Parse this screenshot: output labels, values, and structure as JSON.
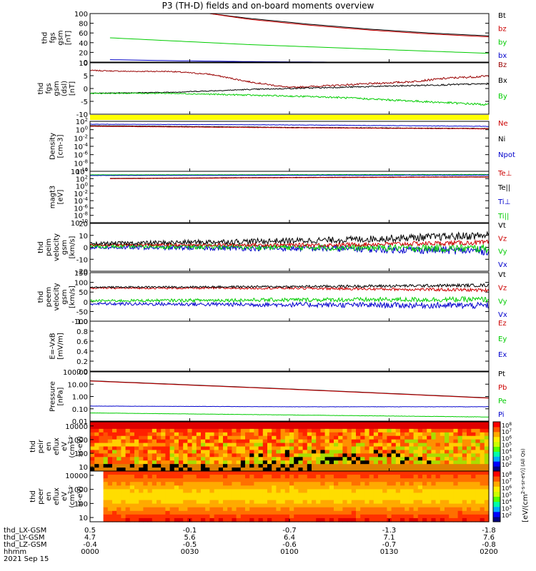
{
  "title": "P3 (TH-D) fields and on-board moments overview",
  "colors": {
    "black": "#000000",
    "red": "#cc0000",
    "darkred": "#990000",
    "green": "#00cc00",
    "blue": "#0000cc",
    "yellow": "#ffff00"
  },
  "footer": {
    "rows": [
      {
        "label": "thd_LX-GSM",
        "values": [
          "0.5",
          "-0.1",
          "-0.7",
          "-1.3",
          "-1.8"
        ]
      },
      {
        "label": "thd_LY-GSM",
        "values": [
          "4.7",
          "5.6",
          "6.4",
          "7.1",
          "7.6"
        ]
      },
      {
        "label": "thd_LZ-GSM",
        "values": [
          "-0.4",
          "-0.5",
          "-0.6",
          "-0.7",
          "-0.8"
        ]
      },
      {
        "label": "hhmm",
        "values": [
          "0000",
          "0030",
          "0100",
          "0130",
          "0200"
        ]
      }
    ],
    "date": "2021 Sep 15"
  },
  "colorbar": {
    "tick_labels": [
      "10^8",
      "10^7",
      "10^6",
      "10^5",
      "10^4",
      "10^3",
      "10^2"
    ],
    "title": "[eV/(cm^2-s-sr-eV)] (All Qs)"
  },
  "chart_data": [
    {
      "type": "line",
      "name": "fgs_gsm",
      "ylabel": [
        "thd",
        "fgs",
        "gsm",
        "[nT]"
      ],
      "ylim": [
        0,
        100
      ],
      "yticks": [
        "100",
        "80",
        "60",
        "40",
        "20",
        "0"
      ],
      "legend": [
        {
          "label": "Bt",
          "color": "#000000"
        },
        {
          "label": "bz",
          "color": "#cc0000"
        },
        {
          "label": "by",
          "color": "#00cc00"
        },
        {
          "label": "bx",
          "color": "#0000cc"
        }
      ],
      "series": [
        {
          "label": "Bt",
          "color": "#000000",
          "x": [
            0.3,
            0.4,
            0.55,
            0.7,
            0.85,
            1.0
          ],
          "y": [
            100,
            90,
            78,
            68,
            60,
            54
          ],
          "noise": 0
        },
        {
          "label": "bz",
          "color": "#cc0000",
          "x": [
            0.3,
            0.4,
            0.55,
            0.7,
            0.85,
            1.0
          ],
          "y": [
            100,
            88,
            76,
            66,
            58,
            52
          ],
          "noise": 0
        },
        {
          "label": "by",
          "color": "#00cc00",
          "x": [
            0.05,
            0.2,
            0.4,
            0.6,
            0.8,
            1.0
          ],
          "y": [
            50,
            44,
            36,
            30,
            24,
            18
          ],
          "noise": 0
        },
        {
          "label": "bx",
          "color": "#0000cc",
          "x": [
            0.05,
            0.2,
            0.4,
            0.6,
            0.8,
            1.0
          ],
          "y": [
            5,
            3,
            1,
            0,
            -1,
            -2
          ],
          "noise": 0
        }
      ]
    },
    {
      "type": "line",
      "name": "fgs_dsl",
      "ylabel": [
        "thd",
        "fgs",
        "gsm",
        "(dsl)",
        "[nT]"
      ],
      "ylim": [
        -15,
        12
      ],
      "yticks": [
        "10",
        "5",
        "0",
        "-5",
        "-10"
      ],
      "legend": [
        {
          "label": "Bz",
          "color": "#990000"
        },
        {
          "label": "Bx",
          "color": "#000000"
        },
        {
          "label": "By",
          "color": "#00cc00"
        }
      ],
      "series": [
        {
          "label": "Bz",
          "color": "#990000",
          "x": [
            0.0,
            0.1,
            0.2,
            0.3,
            0.4,
            0.5,
            0.6,
            0.7,
            0.8,
            0.9,
            1.0
          ],
          "y": [
            8,
            7.5,
            7.5,
            6,
            2,
            -1,
            0,
            1,
            2,
            4,
            5
          ],
          "noise": 0.4
        },
        {
          "label": "Bx",
          "color": "#000000",
          "x": [
            0.0,
            0.2,
            0.4,
            0.6,
            0.8,
            1.0
          ],
          "y": [
            -4,
            -3.5,
            -2,
            -1,
            0,
            1
          ],
          "noise": 0.3
        },
        {
          "label": "By",
          "color": "#00cc00",
          "x": [
            0.0,
            0.2,
            0.4,
            0.6,
            0.8,
            1.0
          ],
          "y": [
            -4,
            -4,
            -5,
            -6,
            -8,
            -10
          ],
          "noise": 0.4
        }
      ]
    },
    {
      "type": "line",
      "name": "density",
      "ylabel": [
        "Density",
        "[cm-3]"
      ],
      "ylim": [
        -11,
        3
      ],
      "ylog": true,
      "yticks": [
        "10^2",
        "10^0",
        "10^-2",
        "10^-4",
        "10^-6",
        "10^-8",
        "10^-10"
      ],
      "legend": [
        {
          "label": "Ne",
          "color": "#cc0000"
        },
        {
          "label": "Ni",
          "color": "#000000"
        },
        {
          "label": "Npot",
          "color": "#0000cc"
        }
      ],
      "series": [
        {
          "label": "Npot",
          "color": "#0000cc",
          "x": [
            0.0,
            0.5,
            1.0
          ],
          "y": [
            2.2,
            2.0,
            1.6
          ],
          "noise": 0.05
        },
        {
          "label": "Ni",
          "color": "#000000",
          "x": [
            0.0,
            0.5,
            1.0
          ],
          "y": [
            1.8,
            1.3,
            1.0
          ],
          "noise": 0.05
        },
        {
          "label": "Ne",
          "color": "#cc0000",
          "x": [
            0.0,
            0.5,
            1.0
          ],
          "y": [
            1.6,
            1.2,
            0.9
          ],
          "noise": 0.05
        }
      ]
    },
    {
      "type": "line",
      "name": "temperature",
      "ylabel": [
        "magt3",
        "[eV]"
      ],
      "ylim": [
        -11,
        5
      ],
      "ylog": true,
      "yticks": [
        "10^4",
        "10^2",
        "10^0",
        "10^-2",
        "10^-4",
        "10^-6",
        "10^-8",
        "10^-10"
      ],
      "legend": [
        {
          "label": "Te⊥",
          "color": "#cc0000"
        },
        {
          "label": "Te||",
          "color": "#000000"
        },
        {
          "label": "Ti⊥",
          "color": "#0000cc"
        },
        {
          "label": "Ti||",
          "color": "#00cc00"
        }
      ],
      "series": [
        {
          "label": "Ti||",
          "color": "#00cc00",
          "x": [
            0.0,
            1.0
          ],
          "y": [
            3.9,
            4.0
          ],
          "noise": 0.05
        },
        {
          "label": "Ti⊥",
          "color": "#0000cc",
          "x": [
            0.0,
            1.0
          ],
          "y": [
            3.7,
            3.8
          ],
          "noise": 0.05
        },
        {
          "label": "Te||",
          "color": "#000000",
          "x": [
            0.05,
            0.5,
            1.0
          ],
          "y": [
            2.8,
            3.1,
            3.3
          ],
          "noise": 0.03
        },
        {
          "label": "Te⊥",
          "color": "#cc0000",
          "x": [
            0.05,
            0.5,
            1.0
          ],
          "y": [
            2.7,
            3.0,
            3.2
          ],
          "noise": 0.03
        }
      ]
    },
    {
      "type": "line",
      "name": "peim_velocity",
      "ylabel": [
        "thd",
        "peim",
        "velocity",
        "gsm",
        "[km/s]"
      ],
      "ylim": [
        -20,
        20
      ],
      "yticks": [
        "20",
        "10",
        "0",
        "-10",
        "-20"
      ],
      "legend": [
        {
          "label": "Vt",
          "color": "#000000"
        },
        {
          "label": "Vz",
          "color": "#cc0000"
        },
        {
          "label": "Vy",
          "color": "#00cc00"
        },
        {
          "label": "Vx",
          "color": "#0000cc"
        }
      ],
      "series": [
        {
          "label": "Vx",
          "color": "#0000cc",
          "x": [
            0.0,
            0.6,
            1.0
          ],
          "y": [
            0,
            -1,
            -3
          ],
          "noise": 2.5
        },
        {
          "label": "Vy",
          "color": "#00cc00",
          "x": [
            0.0,
            0.6,
            1.0
          ],
          "y": [
            1,
            0,
            -1
          ],
          "noise": 2.5
        },
        {
          "label": "Vz",
          "color": "#cc0000",
          "x": [
            0.0,
            0.6,
            1.0
          ],
          "y": [
            2,
            2,
            4
          ],
          "noise": 1.5
        },
        {
          "label": "Vt",
          "color": "#000000",
          "x": [
            0.0,
            0.6,
            1.0
          ],
          "y": [
            3,
            6,
            10
          ],
          "noise": 2.5
        }
      ]
    },
    {
      "type": "line",
      "name": "peem_velocity",
      "ylabel": [
        "thd",
        "peem",
        "velocity",
        "gsm",
        "[km/s]"
      ],
      "ylim": [
        -100,
        150
      ],
      "yticks": [
        "150",
        "100",
        "50",
        "0",
        "-50",
        "-100"
      ],
      "legend": [
        {
          "label": "Vt",
          "color": "#000000"
        },
        {
          "label": "Vz",
          "color": "#cc0000"
        },
        {
          "label": "Vy",
          "color": "#00cc00"
        },
        {
          "label": "Vx",
          "color": "#0000cc"
        }
      ],
      "series": [
        {
          "label": "Vx",
          "color": "#0000cc",
          "x": [
            0.0,
            0.5,
            1.0
          ],
          "y": [
            -10,
            -15,
            -20
          ],
          "noise": 12
        },
        {
          "label": "Vy",
          "color": "#00cc00",
          "x": [
            0.0,
            0.5,
            1.0
          ],
          "y": [
            5,
            10,
            12
          ],
          "noise": 10
        },
        {
          "label": "Vz",
          "color": "#cc0000",
          "x": [
            0.0,
            0.5,
            1.0
          ],
          "y": [
            70,
            70,
            60
          ],
          "noise": 6
        },
        {
          "label": "Vt",
          "color": "#000000",
          "x": [
            0.0,
            0.5,
            1.0
          ],
          "y": [
            75,
            78,
            85
          ],
          "noise": 6
        }
      ]
    },
    {
      "type": "line",
      "name": "efield",
      "ylabel": [
        "E=-VxB",
        "[mV/m]"
      ],
      "ylim": [
        0,
        1.0
      ],
      "yticks": [
        "1.0",
        "0.8",
        "0.6",
        "0.4",
        "0.2",
        "0.0"
      ],
      "legend": [
        {
          "label": "Ez",
          "color": "#cc0000"
        },
        {
          "label": "Ey",
          "color": "#00cc00"
        },
        {
          "label": "Ex",
          "color": "#0000cc"
        }
      ],
      "series": []
    },
    {
      "type": "line",
      "name": "pressure",
      "ylabel": [
        "Pressure",
        "[nPa]"
      ],
      "ylim": [
        -1.5,
        2.1
      ],
      "ylog": true,
      "yticks": [
        "100.00",
        "10.00",
        "1.00",
        "0.10",
        "0.01"
      ],
      "legend": [
        {
          "label": "Pt",
          "color": "#000000"
        },
        {
          "label": "Pb",
          "color": "#cc0000"
        },
        {
          "label": "Pe",
          "color": "#00cc00"
        },
        {
          "label": "Pi",
          "color": "#0000cc"
        }
      ],
      "series": [
        {
          "label": "Pt",
          "color": "#000000",
          "x": [
            0.0,
            0.5,
            1.0
          ],
          "y": [
            1.45,
            0.85,
            0.2
          ],
          "noise": 0
        },
        {
          "label": "Pb",
          "color": "#cc0000",
          "x": [
            0.0,
            0.5,
            1.0
          ],
          "y": [
            1.43,
            0.83,
            0.18
          ],
          "noise": 0
        },
        {
          "label": "Pi",
          "color": "#0000cc",
          "x": [
            0.0,
            0.5,
            1.0
          ],
          "y": [
            -0.4,
            -0.45,
            -0.45
          ],
          "noise": 0.01
        },
        {
          "label": "Pe",
          "color": "#00cc00",
          "x": [
            0.0,
            0.5,
            1.0
          ],
          "y": [
            -0.9,
            -1.05,
            -1.2
          ],
          "noise": 0.01
        }
      ]
    },
    {
      "type": "heatmap",
      "name": "peir_eflux",
      "ylabel": [
        "thd",
        "peir",
        "en",
        "eflux",
        "eV",
        "(cm^2-s-",
        "sr-eV)"
      ],
      "ylim": [
        5,
        20000
      ],
      "ylog": true,
      "yticks": [
        "10000",
        "1000",
        "100",
        "10"
      ]
    },
    {
      "type": "heatmap",
      "name": "peer_eflux",
      "ylabel": [
        "thd",
        "peer",
        "en",
        "eflux",
        "eV",
        "(cm^2-s-",
        "sr-eV)"
      ],
      "ylim": [
        5,
        20000
      ],
      "ylog": true,
      "yticks": [
        "10000",
        "1000",
        "100",
        "10"
      ]
    }
  ]
}
